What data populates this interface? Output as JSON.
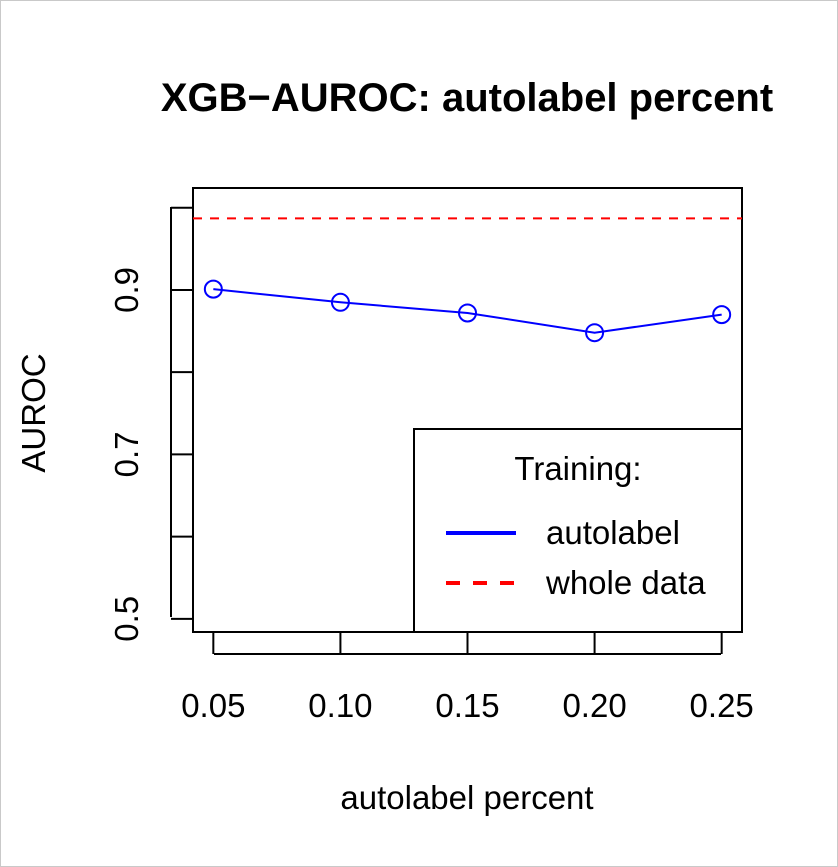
{
  "chart_data": {
    "type": "line",
    "title": "XGB−AUROC: autolabel percent",
    "xlabel": "autolabel percent",
    "ylabel": "AUROC",
    "x": [
      0.05,
      0.1,
      0.15,
      0.2,
      0.25
    ],
    "x_tick_labels": [
      "0.05",
      "0.10",
      "0.15",
      "0.20",
      "0.25"
    ],
    "y_ticks": [
      0.5,
      0.6,
      0.7,
      0.8,
      0.9,
      1.0
    ],
    "y_tick_labels": [
      "0.5",
      "",
      "0.7",
      "",
      "0.9",
      ""
    ],
    "xlim": [
      0.042,
      0.258
    ],
    "ylim": [
      0.484,
      1.024
    ],
    "series": [
      {
        "name": "autolabel",
        "values": [
          0.901,
          0.885,
          0.872,
          0.848,
          0.87
        ],
        "color": "#0000ff",
        "style": "solid",
        "markers": "open-circle"
      },
      {
        "name": "whole data",
        "values": [
          0.987,
          0.987,
          0.987,
          0.987,
          0.987
        ],
        "color": "#ff0000",
        "style": "dashed",
        "horizontal_line": true
      }
    ],
    "legend": {
      "title": "Training:",
      "position": "bottom-right"
    },
    "grid": false
  }
}
